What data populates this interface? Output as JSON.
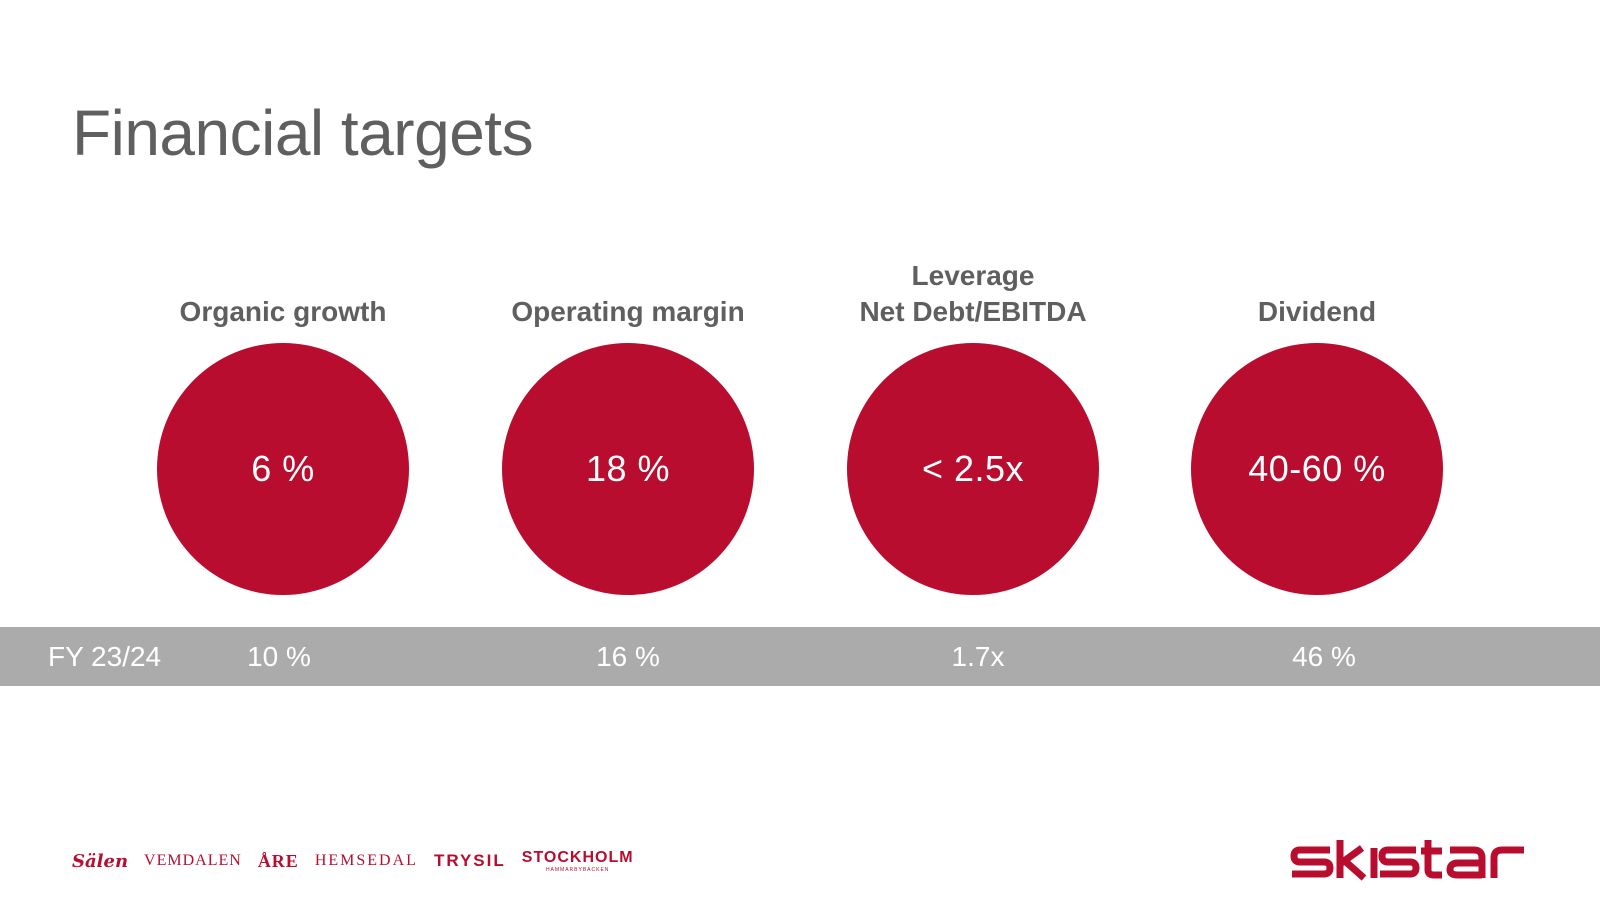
{
  "slide": {
    "title": "Financial targets"
  },
  "targets": [
    {
      "label_lines": [
        "Organic growth"
      ],
      "value": "6 %"
    },
    {
      "label_lines": [
        "Operating margin"
      ],
      "value": "18 %"
    },
    {
      "label_lines": [
        "Leverage",
        "Net Debt/EBITDA"
      ],
      "value": "< 2.5x"
    },
    {
      "label_lines": [
        "Dividend"
      ],
      "value": "40-60 %"
    }
  ],
  "actuals": {
    "period": "FY 23/24",
    "values": [
      "10 %",
      "16 %",
      "1.7x",
      "46 %"
    ]
  },
  "brands": {
    "salen": "Sälen",
    "vemdalen": "VEMDALEN",
    "are": "ÅRE",
    "hemsedal": "HEMSEDAL",
    "trysil": "TRYSIL",
    "stockholm": "STOCKHOLM",
    "stockholm_sub": "HAMMARBYBACKEN"
  },
  "logo": {
    "text": "skistar"
  },
  "colors": {
    "accent": "#b90d2f",
    "band": "#ababab",
    "heading": "#5f5f5f"
  }
}
